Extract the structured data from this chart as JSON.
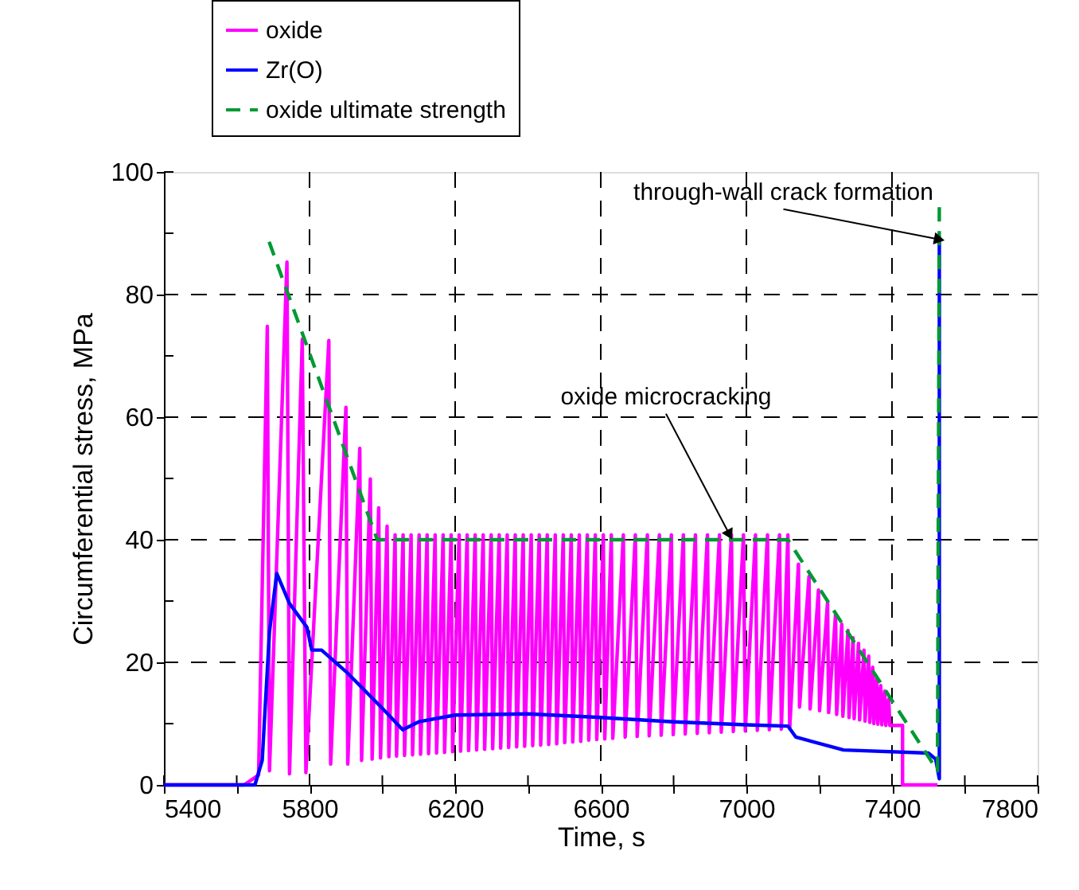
{
  "chart_data": {
    "type": "line",
    "xlabel": "Time, s",
    "ylabel": "Circumferential stress, MPa",
    "xlim": [
      5400,
      7800
    ],
    "ylim": [
      0,
      100
    ],
    "xticks": [
      5400,
      {
        "value": 5600,
        "label": null
      },
      5800,
      {
        "value": 6000,
        "label": null
      },
      6200,
      {
        "value": 6400,
        "label": null
      },
      6600,
      {
        "value": 6800,
        "label": null
      },
      7000,
      {
        "value": 7200,
        "label": null
      },
      7400,
      {
        "value": 7600,
        "label": null
      },
      7800
    ],
    "yticks": [
      0,
      {
        "value": 10,
        "label": null
      },
      20,
      {
        "value": 30,
        "label": null
      },
      40,
      {
        "value": 50,
        "label": null
      },
      60,
      {
        "value": 70,
        "label": null
      },
      80,
      {
        "value": 90,
        "label": null
      },
      100
    ],
    "grid": true,
    "legend": "top",
    "marker": "none",
    "series": [
      {
        "name": "oxide",
        "color": "#ff00ff",
        "line_style": "solid",
        "x": [
          5400,
          5620,
          5660,
          5684,
          5690,
          5738,
          5745,
          5780,
          5790,
          5853,
          5858,
          5900,
          5905,
          5938,
          5943,
          5967,
          5972,
          5990,
          5995,
          6013,
          6018,
          6035,
          6039,
          6057,
          6061,
          6079,
          6083,
          6101,
          6105,
          6123,
          6127,
          6145,
          6149,
          6167,
          6171,
          6189,
          6193,
          6211,
          6215,
          6233,
          6237,
          6255,
          6259,
          6277,
          6281,
          6299,
          6303,
          6321,
          6325,
          6343,
          6347,
          6365,
          6369,
          6387,
          6391,
          6409,
          6413,
          6431,
          6435,
          6453,
          6457,
          6475,
          6479,
          6497,
          6501,
          6519,
          6523,
          6541,
          6545,
          6563,
          6567,
          6585,
          6589,
          6607,
          6611,
          6629,
          6633,
          6662,
          6667,
          6695,
          6700,
          6728,
          6733,
          6761,
          6766,
          6794,
          6799,
          6827,
          6832,
          6860,
          6865,
          6893,
          6898,
          6926,
          6931,
          6959,
          6964,
          6992,
          6997,
          7025,
          7030,
          7058,
          7063,
          7091,
          7096,
          7114,
          7119,
          7143,
          7146,
          7172,
          7175,
          7198,
          7201,
          7223,
          7226,
          7245,
          7248,
          7262,
          7265,
          7279,
          7282,
          7293,
          7296,
          7308,
          7311,
          7323,
          7326,
          7336,
          7339,
          7347,
          7350,
          7358,
          7361,
          7369,
          7372,
          7380,
          7383,
          7391,
          7394,
          7429,
          7429,
          7525
        ],
        "values": [
          0,
          0,
          1.6,
          74.8,
          2.3,
          85.3,
          1.8,
          72.7,
          2,
          72.5,
          3.4,
          61.6,
          3.4,
          54.9,
          4,
          49.9,
          4.2,
          45.2,
          4.4,
          42.2,
          4.6,
          40.8,
          4.7,
          40.8,
          4.8,
          40.8,
          4.9,
          40.8,
          5.0,
          40.8,
          5.1,
          40.8,
          5.2,
          40.8,
          5.3,
          40.8,
          5.4,
          40.8,
          5.5,
          40.8,
          5.6,
          40.8,
          5.7,
          40.8,
          5.8,
          40.8,
          5.9,
          40.8,
          6.0,
          40.8,
          6.1,
          40.8,
          6.2,
          40.8,
          6.3,
          40.8,
          6.4,
          40.8,
          6.5,
          40.8,
          6.6,
          40.8,
          6.7,
          40.8,
          6.9,
          40.8,
          7.0,
          40.8,
          7.1,
          40.8,
          7.3,
          40.8,
          7.4,
          40.8,
          7.5,
          40.8,
          7.6,
          40.8,
          7.8,
          40.8,
          7.9,
          40.8,
          8.0,
          40.8,
          8.1,
          40.8,
          8.2,
          40.8,
          8.3,
          40.8,
          8.4,
          40.8,
          8.5,
          40.8,
          8.6,
          40.8,
          8.7,
          40.8,
          8.8,
          40.8,
          8.9,
          40.8,
          9.0,
          40.8,
          9.1,
          40.8,
          9.2,
          36,
          12.7,
          34,
          12.4,
          31.8,
          12.1,
          29.8,
          11.8,
          27.9,
          11.5,
          26.2,
          11.2,
          25.2,
          11,
          24,
          10.8,
          23.1,
          10.6,
          22,
          10.4,
          21,
          10.2,
          19.2,
          10,
          17.5,
          9.9,
          16.2,
          9.8,
          15.3,
          9.7,
          14,
          9.7,
          9.7,
          0,
          0
        ]
      },
      {
        "name": "Zr(O)",
        "color": "#0000ff",
        "line_style": "solid",
        "x": [
          5400,
          5650,
          5670,
          5690,
          5710,
          5745,
          5793,
          5806,
          5833,
          5900,
          6000,
          6056,
          6100,
          6200,
          6400,
          6600,
          6800,
          7000,
          7114,
          7136,
          7267,
          7500,
          7520,
          7530,
          7530
        ],
        "values": [
          0,
          0,
          4,
          25,
          34.5,
          29.6,
          25.7,
          22,
          22,
          18.5,
          12.5,
          9,
          10.3,
          11.4,
          11.6,
          11,
          10.3,
          9.8,
          9.6,
          7.8,
          5.7,
          5.2,
          4.2,
          1,
          89
        ]
      },
      {
        "name": "oxide ultimate strength",
        "color": "#009933",
        "line_style": "dashed",
        "x": [
          5689,
          5986,
          7114,
          7525,
          7530
        ],
        "values": [
          88.6,
          40,
          40,
          2.3,
          95
        ]
      }
    ],
    "annotations": [
      {
        "text": "oxide microcracking",
        "x": 6954,
        "y": 40.8
      },
      {
        "text": "through-wall crack formation",
        "x": 7530,
        "y": 89
      }
    ]
  }
}
